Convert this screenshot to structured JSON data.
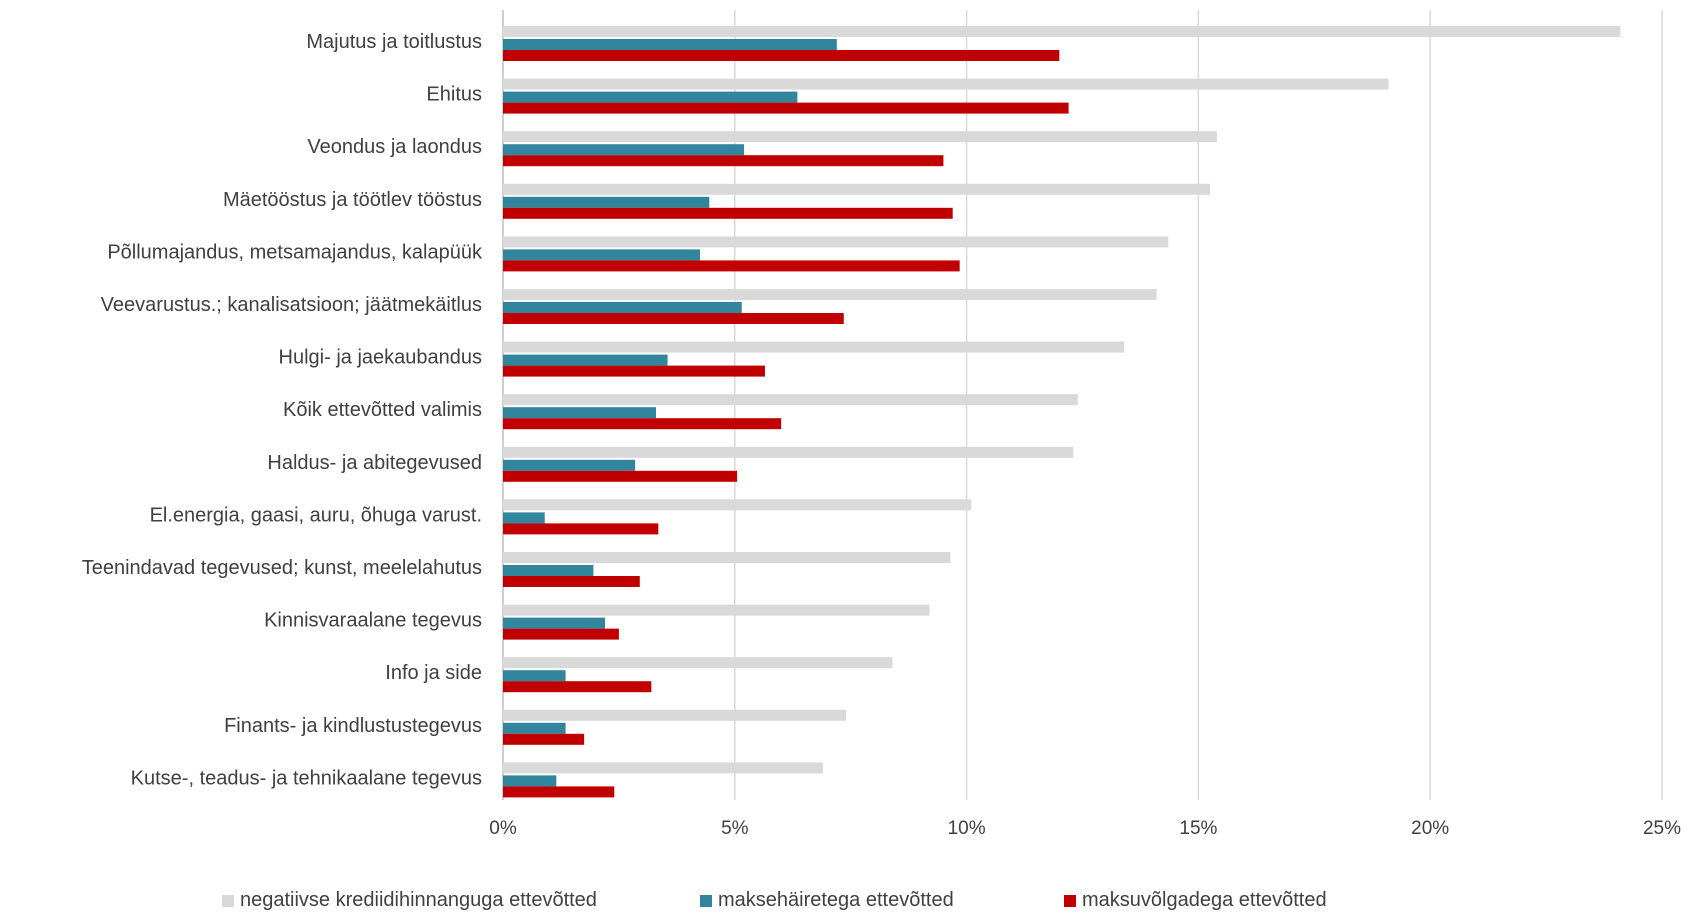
{
  "chart_data": {
    "type": "bar",
    "orientation": "horizontal",
    "categories": [
      "Majutus ja toitlustus",
      "Ehitus",
      "Veondus ja laondus",
      "Mäetööstus ja töötlev tööstus",
      "Põllumajandus, metsamajandus, kalapüük",
      "Veevarustus.; kanalisatsioon; jäätmekäitlus",
      "Hulgi- ja jaekaubandus",
      "Kõik ettevõtted valimis",
      "Haldus- ja abitegevused",
      "El.energia, gaasi, auru, õhuga varust.",
      "Teenindavad tegevused; kunst, meelelahutus",
      "Kinnisvaraalane tegevus",
      "Info ja side",
      "Finants- ja kindlustustegevus",
      "Kutse-, teadus- ja tehnikaalane tegevus"
    ],
    "series": [
      {
        "name": "negatiivse krediidihinnanguga ettevõtted",
        "color": "#d9d9d9",
        "values": [
          24.1,
          19.1,
          15.4,
          15.25,
          14.35,
          14.1,
          13.4,
          12.4,
          12.3,
          10.1,
          9.65,
          9.2,
          8.4,
          7.4,
          6.9
        ]
      },
      {
        "name": "maksehäiretega ettevõtted",
        "color": "#31859c",
        "values": [
          7.2,
          6.35,
          5.2,
          4.45,
          4.25,
          5.15,
          3.55,
          3.3,
          2.85,
          0.9,
          1.95,
          2.2,
          1.35,
          1.35,
          1.15
        ]
      },
      {
        "name": "maksuvõlgadega ettevõtted",
        "color": "#c00000",
        "values": [
          12.0,
          12.2,
          9.5,
          9.7,
          9.85,
          7.35,
          5.65,
          6.0,
          5.05,
          3.35,
          2.95,
          2.5,
          3.2,
          1.75,
          2.4
        ]
      }
    ],
    "xlim": [
      0,
      25
    ],
    "xticks": [
      0,
      5,
      10,
      15,
      20,
      25
    ],
    "xtick_labels": [
      "0%",
      "5%",
      "10%",
      "15%",
      "20%",
      "25%"
    ],
    "title": "",
    "xlabel": "",
    "ylabel": "",
    "grid": "vertical",
    "legend_position": "bottom"
  }
}
